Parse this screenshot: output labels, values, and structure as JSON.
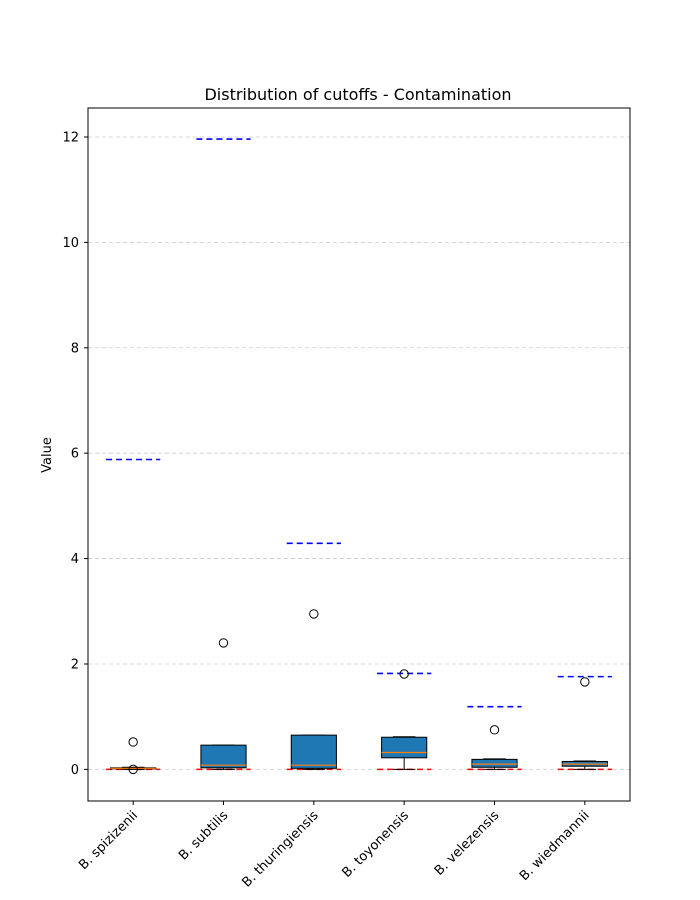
{
  "chart_data": {
    "type": "box",
    "title": "Distribution of cutoffs - Contamination",
    "xlabel": "",
    "ylabel": "Value",
    "ylim": [
      -0.6,
      12.55
    ],
    "yticks": [
      0,
      2,
      4,
      6,
      8,
      10,
      12
    ],
    "grid": "horizontal dashed",
    "categories": [
      "B. spizizenii",
      "B. subtilis",
      "B. thuringiensis",
      "B. toyonensis",
      "B. velezensis",
      "B. wiedmannii"
    ],
    "boxes": [
      {
        "q1": 0.01,
        "median": 0.02,
        "q3": 0.03,
        "whisker_low": 0.0,
        "whisker_high": 0.04,
        "outliers": [
          0.52,
          0.0
        ]
      },
      {
        "q1": 0.03,
        "median": 0.08,
        "q3": 0.46,
        "whisker_low": 0.0,
        "whisker_high": 0.46,
        "outliers": [
          2.4
        ]
      },
      {
        "q1": 0.02,
        "median": 0.08,
        "q3": 0.65,
        "whisker_low": 0.0,
        "whisker_high": 0.65,
        "outliers": [
          2.95
        ]
      },
      {
        "q1": 0.22,
        "median": 0.32,
        "q3": 0.61,
        "whisker_low": 0.0,
        "whisker_high": 0.62,
        "outliers": [
          1.81
        ]
      },
      {
        "q1": 0.04,
        "median": 0.1,
        "q3": 0.19,
        "whisker_low": 0.0,
        "whisker_high": 0.2,
        "outliers": [
          0.75
        ]
      },
      {
        "q1": 0.06,
        "median": 0.1,
        "q3": 0.15,
        "whisker_low": 0.0,
        "whisker_high": 0.16,
        "outliers": [
          1.66
        ]
      }
    ],
    "upper_cutoff": [
      5.88,
      11.96,
      4.29,
      1.82,
      1.19,
      1.76
    ],
    "lower_cutoff": [
      0.0,
      0.0,
      0.0,
      0.0,
      0.0,
      0.0
    ],
    "colors": {
      "box_fill": "#1f77b4",
      "median": "#ff7f0e",
      "upper_cutoff": "#0000ff",
      "lower_cutoff": "#ff0000",
      "grid": "#cccccc"
    }
  }
}
